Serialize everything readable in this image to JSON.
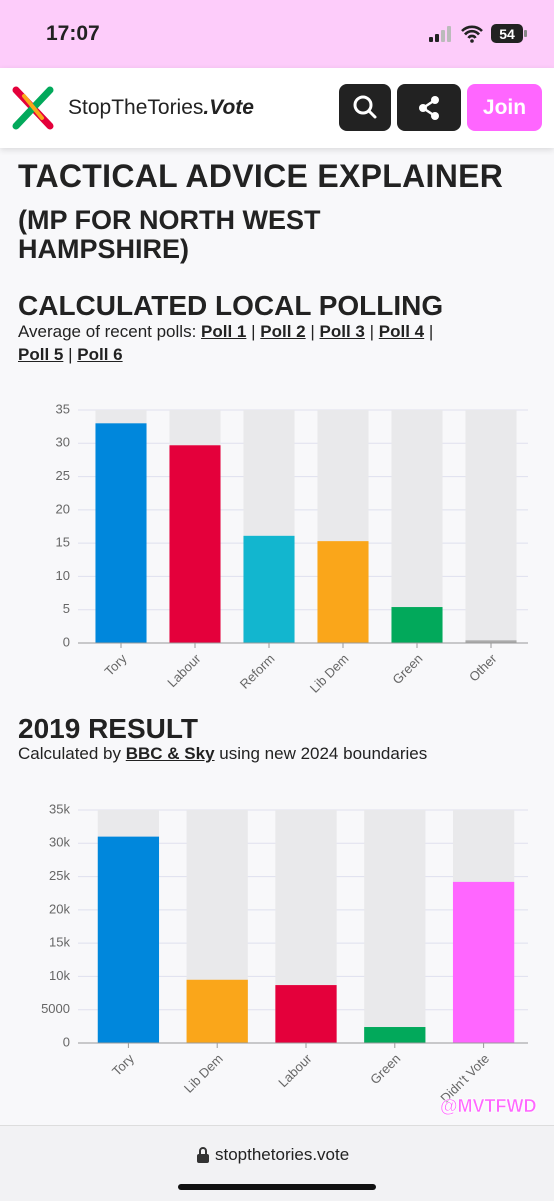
{
  "status_bar": {
    "time": "17:07",
    "battery": "54"
  },
  "header": {
    "brand": "StopTheTories",
    "brand_suffix": ".Vote",
    "join_button": "Join"
  },
  "page_title": {
    "line1": "TACTICAL ADVICE EXPLAINER",
    "line2": "(MP FOR NORTH WEST",
    "line3": "HAMPSHIRE)"
  },
  "polls_note": {
    "prefix": "Average of recent polls:",
    "separator": "|",
    "links": [
      "Poll 1",
      "Poll 2",
      "Poll 3",
      "Poll 4",
      "Poll 5",
      "Poll 6"
    ]
  },
  "results_note": {
    "prefix": "Calculated by",
    "link": "BBC & Sky",
    "suffix": "using new 2024 boundaries"
  },
  "chart_data": [
    {
      "type": "bar",
      "title": "CALCULATED LOCAL POLLING",
      "categories": [
        "Tory",
        "Labour",
        "Reform",
        "Lib Dem",
        "Green",
        "Other"
      ],
      "values": [
        33.0,
        29.7,
        16.1,
        15.3,
        5.4,
        0.4
      ],
      "colors": [
        "#0087dc",
        "#e4003b",
        "#12b6cf",
        "#faa61a",
        "#02a95b",
        "#aaaaaa"
      ],
      "ylim": [
        0,
        35
      ],
      "yticks": [
        0,
        5,
        10,
        15,
        20,
        25,
        30,
        35
      ],
      "grid": true
    },
    {
      "type": "bar",
      "title": "2019 RESULT",
      "categories": [
        "Tory",
        "Lib Dem",
        "Labour",
        "Green",
        "Didn't Vote"
      ],
      "values": [
        31000,
        9500,
        8700,
        2400,
        24200
      ],
      "colors": [
        "#0087dc",
        "#faa61a",
        "#e4003b",
        "#02a95b",
        "#ff66ff"
      ],
      "ylim": [
        0,
        35000
      ],
      "yticks": [
        0,
        5000,
        {
          "value": 10000,
          "label": "10k"
        },
        {
          "value": 15000,
          "label": "15k"
        },
        {
          "value": 20000,
          "label": "20k"
        },
        {
          "value": 25000,
          "label": "25k"
        },
        {
          "value": 30000,
          "label": "30k"
        },
        {
          "value": 35000,
          "label": "35k"
        }
      ],
      "grid": true
    }
  ],
  "watermark": "@MVTFWD",
  "footer": {
    "url": "stopthetories.vote"
  }
}
